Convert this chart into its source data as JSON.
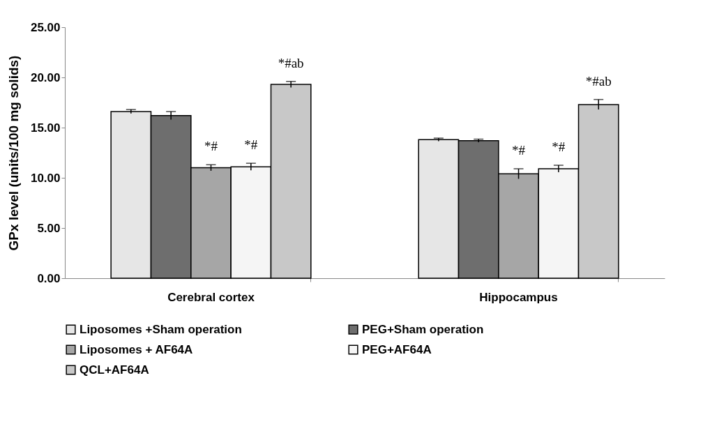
{
  "chart_data": {
    "type": "bar",
    "ylabel": "GPx level (units/100 mg solids)",
    "categories": [
      "Cerebral cortex",
      "Hippocampus"
    ],
    "series": [
      {
        "name": "Liposomes +Sham operation",
        "color": "#e6e6e6",
        "values": [
          16.6,
          13.8
        ],
        "errors": [
          0.2,
          0.15
        ]
      },
      {
        "name": "PEG+Sham operation",
        "color": "#6e6e6e",
        "values": [
          16.2,
          13.7
        ],
        "errors": [
          0.4,
          0.15
        ]
      },
      {
        "name": "Liposomes + AF64A",
        "color": "#a6a6a6",
        "values": [
          11.0,
          10.4
        ],
        "errors": [
          0.3,
          0.5
        ],
        "value_labels": [
          "*#",
          "*#"
        ]
      },
      {
        "name": "PEG+AF64A",
        "color": "#f5f5f5",
        "values": [
          11.1,
          10.9
        ],
        "errors": [
          0.35,
          0.35
        ],
        "value_labels": [
          "*#",
          "*#"
        ]
      },
      {
        "name": "QCL+AF64A",
        "color": "#c8c8c8",
        "values": [
          19.3,
          17.3
        ],
        "errors": [
          0.3,
          0.5
        ],
        "value_labels": [
          "*#ab",
          "*#ab"
        ]
      }
    ],
    "ylim": [
      0,
      25
    ],
    "yticks": [
      {
        "value": 0,
        "label": "0.00"
      },
      {
        "value": 5,
        "label": "5.00"
      },
      {
        "value": 10,
        "label": "10.00"
      },
      {
        "value": 15,
        "label": "15.00"
      },
      {
        "value": 20,
        "label": "20.00"
      },
      {
        "value": 25,
        "label": "25.00"
      }
    ],
    "grid": false,
    "legend": "bottom"
  }
}
